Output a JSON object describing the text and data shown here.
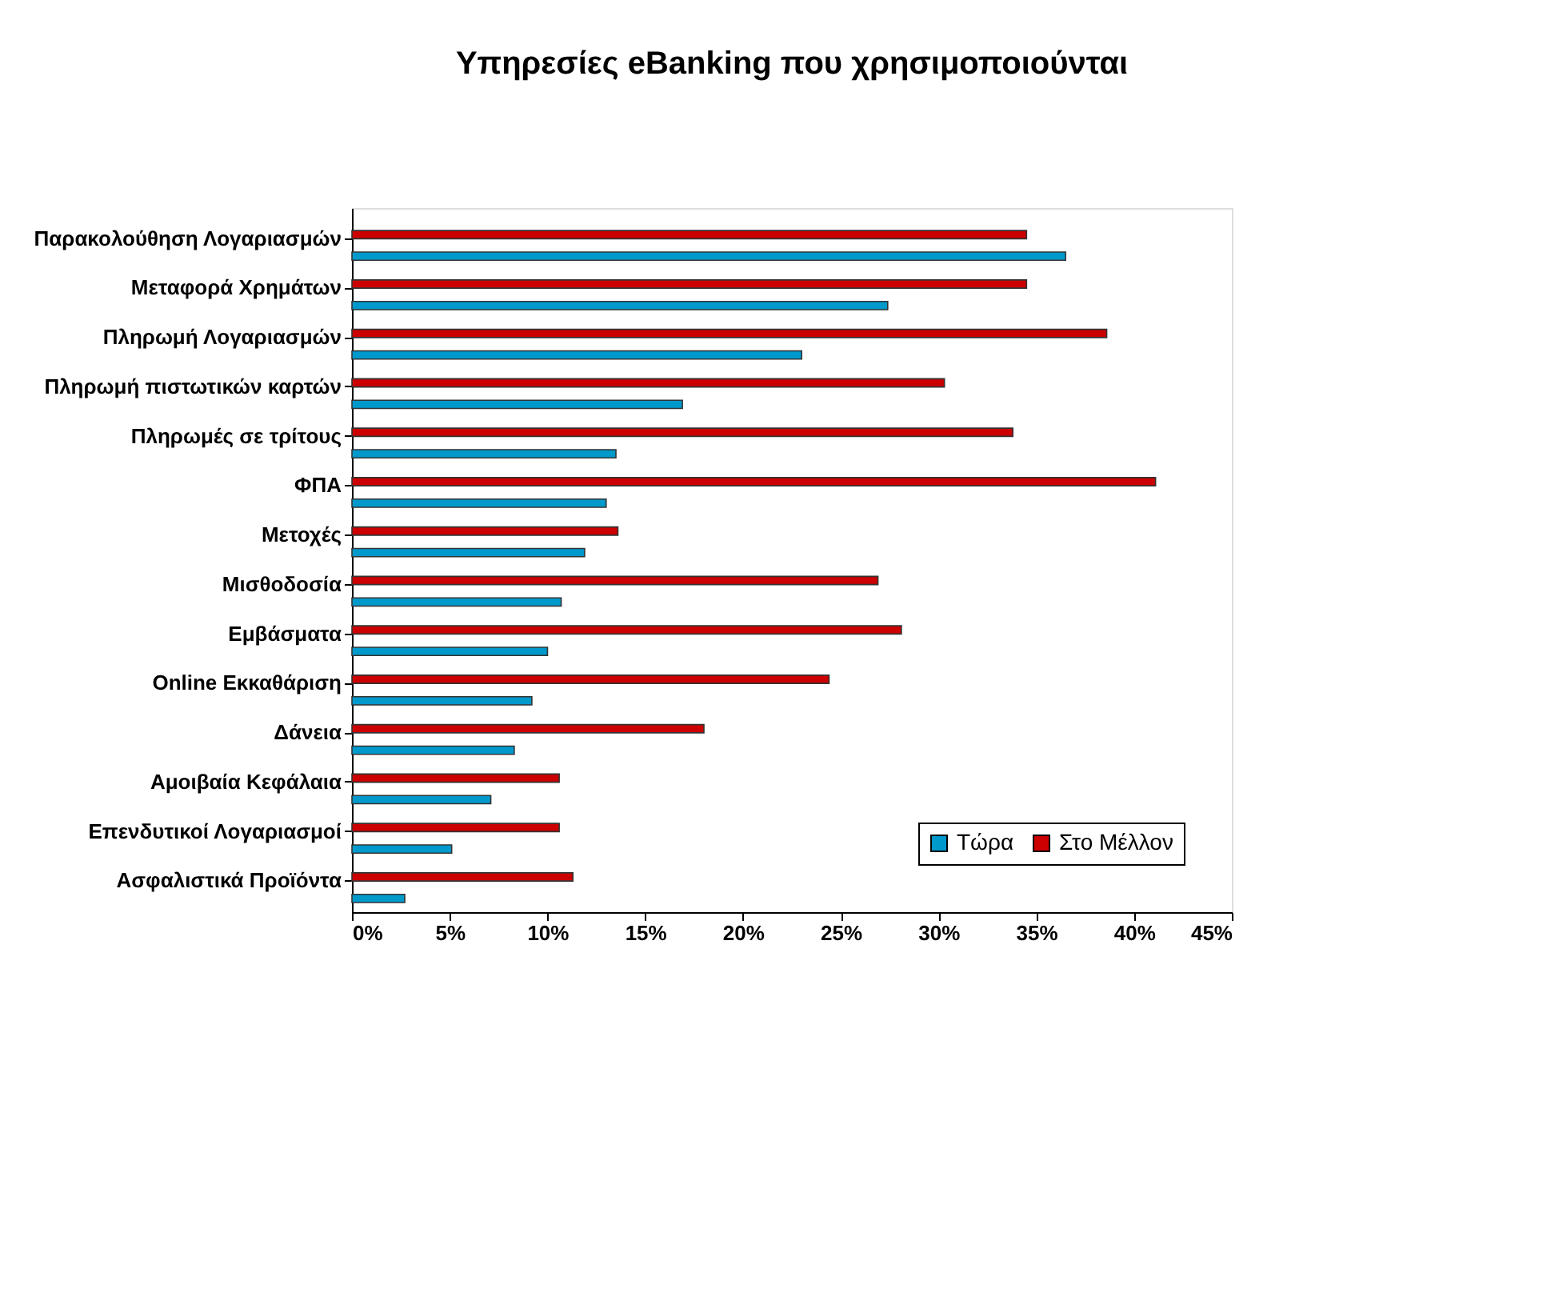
{
  "chart_data": {
    "type": "bar",
    "orientation": "horizontal",
    "title": "Υπηρεσίες eBanking που χρησιμοποιούνται",
    "categories": [
      "Παρακολούθηση Λογαριασμών",
      "Μεταφορά Χρημάτων",
      "Πληρωμή Λογαριασμών",
      "Πληρωμή πιστωτικών καρτών",
      "Πληρωμές σε τρίτους",
      "ΦΠΑ",
      "Μετοχές",
      "Μισθοδοσία",
      "Εμβάσματα",
      "Online Εκκαθάριση",
      "Δάνεια",
      "Αμοιβαία Κεφάλαια",
      "Επενδυτικοί Λογαριασμοί",
      "Ασφαλιστικά Προϊόντα"
    ],
    "series": [
      {
        "name": "Τώρα",
        "color": "#0099cc",
        "values": [
          36.5,
          27.4,
          23,
          16.9,
          13.5,
          13,
          11.9,
          10.7,
          10,
          9.2,
          8.3,
          7.1,
          5.1,
          2.7
        ]
      },
      {
        "name": "Στο Μέλλον",
        "color": "#cc0000",
        "values": [
          34.5,
          34.5,
          38.6,
          30.3,
          33.8,
          41.1,
          13.6,
          26.9,
          28.1,
          24.4,
          18,
          10.6,
          10.6,
          11.3
        ]
      }
    ],
    "xlim": [
      0,
      45
    ],
    "xticks": [
      {
        "value": 0,
        "label": "0%"
      },
      {
        "value": 5,
        "label": "5%"
      },
      {
        "value": 10,
        "label": "10%"
      },
      {
        "value": 15,
        "label": "15%"
      },
      {
        "value": 20,
        "label": "20%"
      },
      {
        "value": 25,
        "label": "25%"
      },
      {
        "value": 30,
        "label": "30%"
      },
      {
        "value": 35,
        "label": "35%"
      },
      {
        "value": 40,
        "label": "40%"
      },
      {
        "value": 45,
        "label": "45%"
      }
    ],
    "grid": false,
    "legend": "bottom right"
  }
}
